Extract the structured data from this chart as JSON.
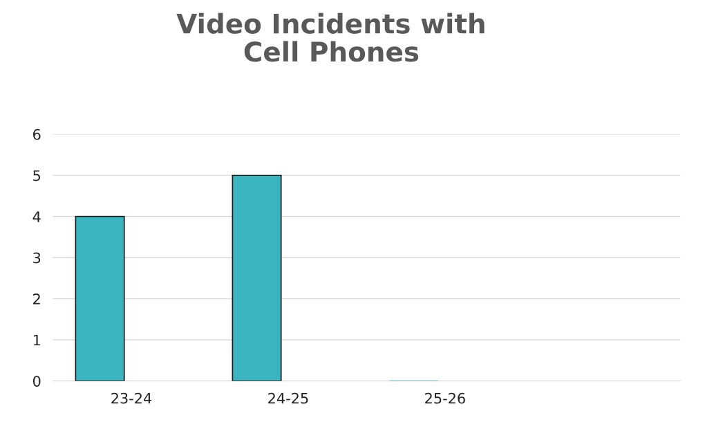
{
  "chart_data": {
    "type": "bar",
    "title": "Video Incidents with\nCell Phones",
    "categories": [
      "23-24",
      "24-25",
      "25-26",
      null
    ],
    "values": [
      4,
      5,
      0,
      null
    ],
    "color": "#3ab4be",
    "ylim": [
      0,
      6
    ],
    "yticks": [
      0,
      1,
      2,
      3,
      4,
      5,
      6
    ],
    "grid": "y",
    "legend": false
  }
}
